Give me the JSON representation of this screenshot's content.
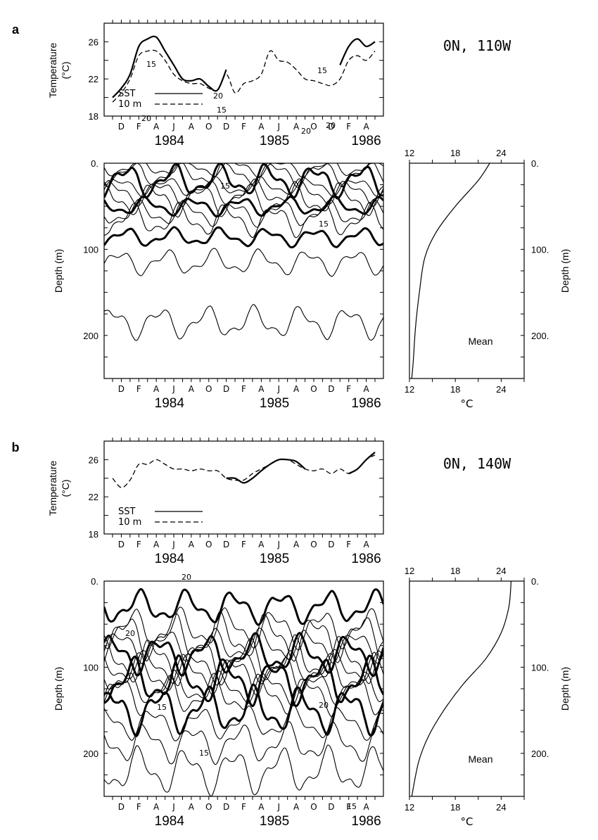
{
  "panels": [
    {
      "label": "a",
      "location": "0N, 110W",
      "ts_ylabel": "Temperature\n(°C)",
      "month_ticks": [
        "D",
        "F",
        "A",
        "J",
        "A",
        "O",
        "D",
        "F",
        "A",
        "J",
        "A",
        "O",
        "D",
        "F",
        "A"
      ],
      "years": [
        "1984",
        "1985",
        "1986"
      ],
      "depth_label": "Depth (m)",
      "mean_label": "Mean",
      "mean_xlabel": "°C"
    },
    {
      "label": "b",
      "location": "0N, 140W",
      "ts_ylabel": "Temperature\n(°C)",
      "month_ticks": [
        "D",
        "F",
        "A",
        "J",
        "A",
        "O",
        "D",
        "F",
        "A",
        "J",
        "A",
        "O",
        "D",
        "F",
        "A"
      ],
      "years": [
        "1984",
        "1985",
        "1986"
      ],
      "depth_label": "Depth (m)",
      "mean_label": "Mean",
      "mean_xlabel": "°C"
    }
  ],
  "chart_data": [
    {
      "type": "line",
      "panel": "a",
      "ylabel": "Temperature (°C)",
      "ylim": [
        18,
        28
      ],
      "yticks": [
        18,
        22,
        26
      ],
      "xlim": [
        0,
        30
      ],
      "x_ticks_months": [
        "D",
        "F",
        "A",
        "J",
        "A",
        "O",
        "D",
        "F",
        "A",
        "J",
        "A",
        "O",
        "D",
        "F",
        "A"
      ],
      "legend": [
        "SST",
        "10 m"
      ],
      "series": [
        {
          "name": "SST",
          "style": "solid",
          "x": [
            0,
            1,
            2,
            3,
            4,
            5,
            6,
            7,
            8,
            9,
            10,
            11,
            12,
            13,
            26,
            27,
            28,
            29,
            30
          ],
          "values": [
            20.0,
            21.0,
            22.5,
            25.5,
            26.3,
            26.5,
            25.0,
            23.5,
            22.0,
            21.8,
            22.0,
            21.2,
            20.8,
            23.0,
            23.5,
            25.5,
            26.3,
            25.5,
            26.0
          ]
        },
        {
          "name": "10 m",
          "style": "dashed",
          "x": [
            0,
            1,
            2,
            3,
            4,
            5,
            6,
            7,
            8,
            9,
            10,
            11,
            12,
            13,
            14,
            15,
            16,
            17,
            18,
            19,
            20,
            21,
            22,
            23,
            24,
            25,
            26,
            27,
            28,
            29,
            30
          ],
          "values": [
            19.5,
            20.5,
            22.0,
            24.5,
            25.0,
            25.0,
            24.0,
            22.5,
            21.8,
            21.5,
            21.5,
            21.0,
            20.8,
            22.5,
            20.5,
            21.5,
            21.8,
            22.5,
            25.0,
            24.0,
            23.8,
            23.0,
            22.0,
            21.8,
            21.5,
            21.3,
            22.0,
            24.0,
            24.5,
            24.0,
            25.0
          ]
        }
      ]
    },
    {
      "type": "heatmap",
      "panel": "a",
      "ylabel": "Depth (m)",
      "ylim": [
        250,
        0
      ],
      "yticks": [
        0,
        100,
        200
      ],
      "contour_labels": [
        "20",
        "20",
        "20",
        "15",
        "15",
        "15",
        "15",
        "20",
        "15"
      ]
    },
    {
      "type": "line",
      "panel": "a",
      "title": "Mean",
      "xlabel": "°C",
      "xlim": [
        12,
        27
      ],
      "xticks": [
        12,
        18,
        24
      ],
      "ylabel": "Depth (m)",
      "yticks": [
        0,
        100,
        200
      ],
      "series": [
        {
          "name": "Mean",
          "x": [
            22.5,
            21.0,
            18.0,
            15.5,
            14.0,
            13.3,
            12.8,
            12.5,
            12.3
          ],
          "y": [
            0,
            20,
            50,
            80,
            110,
            150,
            190,
            230,
            250
          ]
        }
      ]
    },
    {
      "type": "line",
      "panel": "b",
      "ylabel": "Temperature (°C)",
      "ylim": [
        18,
        28
      ],
      "yticks": [
        18,
        22,
        26
      ],
      "xlim": [
        0,
        30
      ],
      "x_ticks_months": [
        "D",
        "F",
        "A",
        "J",
        "A",
        "O",
        "D",
        "F",
        "A",
        "J",
        "A",
        "O",
        "D",
        "F",
        "A"
      ],
      "legend": [
        "SST",
        "10 m"
      ],
      "series": [
        {
          "name": "SST",
          "style": "solid",
          "x": [
            13,
            14,
            15,
            16,
            17,
            18,
            19,
            20,
            21,
            22,
            27,
            28,
            29,
            30
          ],
          "values": [
            24.0,
            24.0,
            23.5,
            24.0,
            24.8,
            25.5,
            26.0,
            26.0,
            25.8,
            25.0,
            24.5,
            25.0,
            26.0,
            26.8
          ]
        },
        {
          "name": "10 m",
          "style": "dashed",
          "x": [
            0,
            1,
            2,
            3,
            4,
            5,
            6,
            7,
            8,
            9,
            10,
            11,
            12,
            13,
            14,
            15,
            16,
            17,
            18,
            19,
            20,
            21,
            22,
            23,
            24,
            25,
            26,
            27,
            28,
            29,
            30
          ],
          "values": [
            24.0,
            23.0,
            23.8,
            25.5,
            25.5,
            26.0,
            25.5,
            25.0,
            25.0,
            24.8,
            25.0,
            24.8,
            24.8,
            24.0,
            23.8,
            23.8,
            24.5,
            25.0,
            25.5,
            26.0,
            26.0,
            25.5,
            25.0,
            24.8,
            25.0,
            24.5,
            25.0,
            24.5,
            25.0,
            26.0,
            26.5
          ]
        }
      ]
    },
    {
      "type": "heatmap",
      "panel": "b",
      "ylabel": "Depth (m)",
      "ylim": [
        250,
        0
      ],
      "yticks": [
        0,
        100,
        200
      ],
      "contour_labels": [
        "20",
        "15",
        "20",
        "15",
        "20",
        "15"
      ]
    },
    {
      "type": "line",
      "panel": "b",
      "title": "Mean",
      "xlabel": "°C",
      "xlim": [
        12,
        27
      ],
      "xticks": [
        12,
        18,
        24
      ],
      "ylabel": "Depth (m)",
      "yticks": [
        0,
        100,
        200
      ],
      "series": [
        {
          "name": "Mean",
          "x": [
            25.3,
            25.0,
            24.0,
            22.0,
            19.0,
            16.5,
            14.5,
            13.2,
            12.3
          ],
          "y": [
            0,
            30,
            60,
            90,
            120,
            150,
            180,
            210,
            250
          ]
        }
      ]
    }
  ]
}
